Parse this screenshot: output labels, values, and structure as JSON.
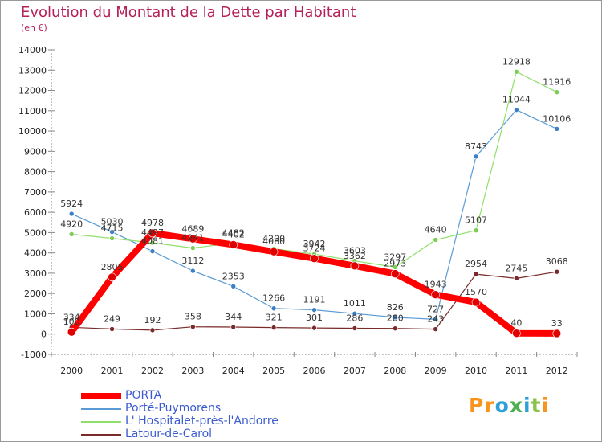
{
  "title": "Evolution du Montant de la Dette par Habitant",
  "subtitle": "(en €)",
  "logo": {
    "text": "Proxiti",
    "letters": [
      {
        "ch": "P",
        "color": "#f7941d"
      },
      {
        "ch": "r",
        "color": "#f7941d"
      },
      {
        "ch": "o",
        "color": "#2e9fd8"
      },
      {
        "ch": "x",
        "color": "#4caf50"
      },
      {
        "ch": "i",
        "color": "#2e9fd8"
      },
      {
        "ch": "t",
        "color": "#8bc34a"
      },
      {
        "ch": "i",
        "color": "#f7941d"
      }
    ]
  },
  "chart_data": {
    "type": "line",
    "title": "Evolution du Montant de la Dette par Habitant",
    "ylabel": "(en €)",
    "xlabel": "",
    "x": [
      2000,
      2001,
      2002,
      2003,
      2004,
      2005,
      2006,
      2007,
      2008,
      2009,
      2010,
      2011,
      2012
    ],
    "ylim": [
      -1000,
      14000
    ],
    "yticks": [
      -1000,
      0,
      1000,
      2000,
      3000,
      4000,
      5000,
      6000,
      7000,
      8000,
      9000,
      10000,
      11000,
      12000,
      13000,
      14000
    ],
    "grid": false,
    "legend_position": "bottom-left",
    "series": [
      {
        "name": "Latour-de-Carol",
        "color": "#7a2a2a",
        "marker_color": "#7a2a2a",
        "width": 1.2,
        "values": [
          334,
          249,
          192,
          358,
          344,
          321,
          301,
          286,
          280,
          243,
          2954,
          2745,
          3068
        ],
        "labels": [
          "334",
          "249",
          "192",
          "358",
          "344",
          "321",
          "301",
          "286",
          "280",
          "243",
          "2954",
          "2745",
          "3068"
        ]
      },
      {
        "name": "Porté-Puymorens",
        "color": "#5b9bd5",
        "marker_color": "#3c7fc4",
        "width": 1.2,
        "values": [
          5924,
          5030,
          4081,
          3112,
          2353,
          1266,
          1191,
          1011,
          826,
          727,
          8743,
          11044,
          10106
        ],
        "labels": [
          "5924",
          "5030",
          "4081",
          "3112",
          "2353",
          "1266",
          "1191",
          "1011",
          "826",
          "727",
          "8743",
          "11044",
          "10106"
        ]
      },
      {
        "name": "L' Hospitalet-près-l'Andorre",
        "color": "#8ee06a",
        "marker_color": "#7ccc55",
        "width": 1.2,
        "values": [
          4920,
          4715,
          4497,
          4241,
          4482,
          4200,
          3942,
          3603,
          3297,
          4640,
          5107,
          12918,
          11916
        ],
        "labels": [
          "4920",
          "4715",
          "4497",
          "4241",
          "4482",
          "4200",
          "3942",
          "3603",
          "3297",
          "4640",
          "5107",
          "12918",
          "11916"
        ]
      },
      {
        "name": "PORTA",
        "color": "#ff0000",
        "marker_color": "#e00000",
        "width": 8,
        "values": [
          100,
          2805,
          4978,
          4689,
          4402,
          4060,
          3724,
          3362,
          2973,
          1943,
          1570,
          40,
          33
        ],
        "labels": [
          "100",
          "2805",
          "4978",
          "4689",
          "4402",
          "4060",
          "3724",
          "3362",
          "2973",
          "1943",
          "1570",
          "40",
          "33"
        ]
      }
    ],
    "legend": [
      {
        "name": "PORTA",
        "color": "#ff0000",
        "width": 8
      },
      {
        "name": "Porté-Puymorens",
        "color": "#5b9bd5",
        "width": 2
      },
      {
        "name": "L' Hospitalet-près-l'Andorre",
        "color": "#8ee06a",
        "width": 2
      },
      {
        "name": "Latour-de-Carol",
        "color": "#7a2a2a",
        "width": 2
      }
    ]
  }
}
